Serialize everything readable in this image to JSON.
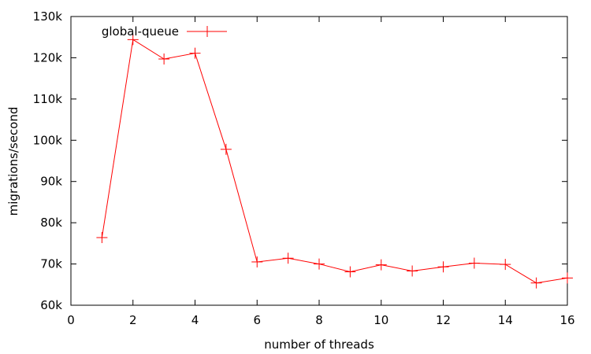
{
  "chart_data": {
    "type": "line",
    "xlabel": "number of threads",
    "ylabel": "migrations/second",
    "xlim": [
      0,
      16
    ],
    "ylim": [
      60000,
      130000
    ],
    "x_ticks": [
      0,
      2,
      4,
      6,
      8,
      10,
      12,
      14,
      16
    ],
    "x_tick_labels": [
      "0",
      "2",
      "4",
      "6",
      "8",
      "10",
      "12",
      "14",
      "16"
    ],
    "y_ticks": [
      60000,
      70000,
      80000,
      90000,
      100000,
      110000,
      120000,
      130000
    ],
    "y_tick_labels": [
      "60k",
      "70k",
      "80k",
      "90k",
      "100k",
      "110k",
      "120k",
      "130k"
    ],
    "grid": false,
    "legend_position": "top-left",
    "series": [
      {
        "name": "global-queue",
        "color": "#ff0000",
        "marker": "plus",
        "x": [
          1,
          2,
          3,
          4,
          5,
          6,
          7,
          8,
          9,
          10,
          11,
          12,
          13,
          14,
          15,
          16
        ],
        "y": [
          76400,
          124400,
          119700,
          121100,
          97800,
          70500,
          71400,
          70000,
          68100,
          69800,
          68300,
          69300,
          70200,
          69900,
          65400,
          66600
        ]
      }
    ]
  }
}
